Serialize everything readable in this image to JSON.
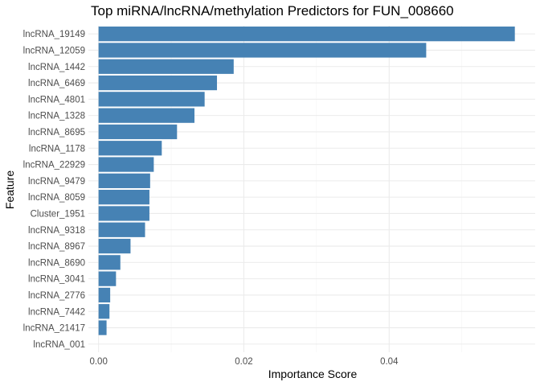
{
  "chart_data": {
    "type": "bar",
    "orientation": "horizontal",
    "title": "Top miRNA/lncRNA/methylation Predictors for FUN_008660",
    "xlabel": "Importance Score",
    "ylabel": "Feature",
    "xlim": [
      -0.0014,
      0.0601
    ],
    "x_ticks": [
      0.0,
      0.02,
      0.04
    ],
    "x_tick_labels": [
      "0.00",
      "0.02",
      "0.04"
    ],
    "grid": true,
    "bar_color": "#4682B4",
    "categories": [
      "lncRNA_19149",
      "lncRNA_12059",
      "lncRNA_1442",
      "lncRNA_6469",
      "lncRNA_4801",
      "lncRNA_1328",
      "lncRNA_8695",
      "lncRNA_1178",
      "lncRNA_22929",
      "lncRNA_9479",
      "lncRNA_8059",
      "Cluster_1951",
      "lncRNA_9318",
      "lncRNA_8967",
      "lncRNA_8690",
      "lncRNA_3041",
      "lncRNA_2776",
      "lncRNA_7442",
      "lncRNA_21417",
      "lncRNA_001"
    ],
    "values": [
      0.0573,
      0.0451,
      0.0186,
      0.0163,
      0.0146,
      0.0132,
      0.0108,
      0.0087,
      0.0076,
      0.0071,
      0.007,
      0.007,
      0.0064,
      0.0044,
      0.003,
      0.0024,
      0.0016,
      0.0015,
      0.0011,
      0.0
    ]
  }
}
